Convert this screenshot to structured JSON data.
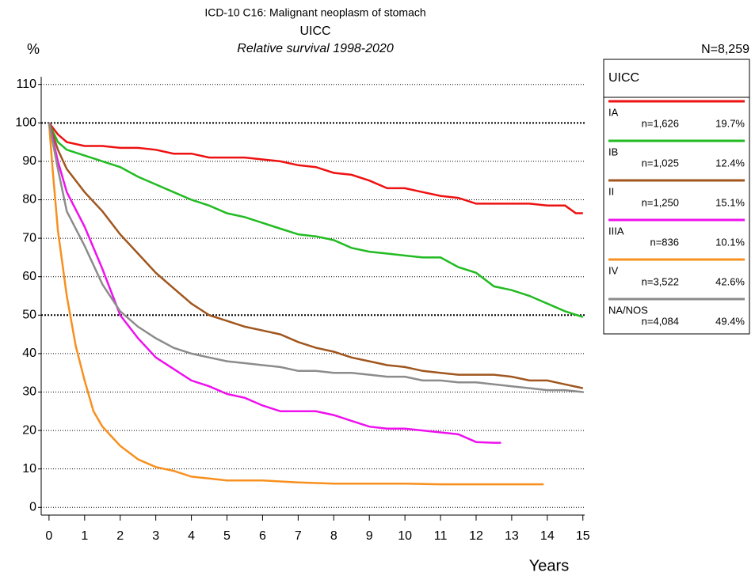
{
  "chart_data": {
    "type": "line",
    "title": "ICD-10 C16: Malignant neoplasm of stomach",
    "subtitle": "UICC",
    "caption": "Relative survival 1998-2020",
    "y_label": "%",
    "x_label": "Years",
    "total": "N=8,259",
    "legend_title": "UICC",
    "xlim": [
      -0.22,
      15.05
    ],
    "xticks": [
      0,
      1,
      2,
      3,
      4,
      5,
      6,
      7,
      8,
      9,
      10,
      11,
      12,
      13,
      14,
      15
    ],
    "ylim": [
      -2,
      112
    ],
    "yticks": [
      0,
      10,
      20,
      30,
      40,
      50,
      60,
      70,
      80,
      90,
      100,
      110
    ],
    "grid": true,
    "series": [
      {
        "name": "IA",
        "color": "#ee1111",
        "count": "n=1,626",
        "share": "19.7%",
        "x": [
          0,
          0.25,
          0.5,
          1,
          1.5,
          2,
          2.5,
          3,
          3.5,
          4,
          4.5,
          5,
          5.5,
          6,
          6.5,
          7,
          7.5,
          8,
          8.5,
          9,
          9.5,
          10,
          10.5,
          11,
          11.5,
          12,
          12.5,
          13,
          13.5,
          14,
          14.5,
          14.8,
          15
        ],
        "values": [
          100,
          97,
          95,
          94,
          94,
          93.5,
          93.5,
          93,
          92,
          92,
          91,
          91,
          91,
          90.5,
          90,
          89,
          88.5,
          87,
          86.5,
          85,
          83,
          83,
          82,
          81,
          80.5,
          79,
          79,
          79,
          79,
          78.5,
          78.5,
          76.5,
          76.5
        ]
      },
      {
        "name": "IB",
        "color": "#22bb22",
        "count": "n=1,025",
        "share": "12.4%",
        "x": [
          0,
          0.25,
          0.5,
          1,
          1.5,
          2,
          2.5,
          3,
          3.5,
          4,
          4.5,
          5,
          5.5,
          6,
          6.5,
          7,
          7.5,
          8,
          8.5,
          9,
          9.5,
          10,
          10.5,
          11,
          11.5,
          12,
          12.5,
          13,
          13.5,
          14,
          14.5,
          15
        ],
        "values": [
          100,
          95,
          93,
          91.5,
          90,
          88.5,
          86,
          84,
          82,
          80,
          78.5,
          76.5,
          75.5,
          74,
          72.5,
          71,
          70.5,
          69.5,
          67.5,
          66.5,
          66,
          65.5,
          65,
          65,
          62.5,
          61,
          57.5,
          56.5,
          55,
          53,
          51,
          49.5
        ]
      },
      {
        "name": "II",
        "color": "#a0561e",
        "count": "n=1,250",
        "share": "15.1%",
        "x": [
          0,
          0.25,
          0.5,
          1,
          1.5,
          2,
          2.5,
          3,
          3.5,
          4,
          4.5,
          5,
          5.5,
          6,
          6.5,
          7,
          7.5,
          8,
          8.5,
          9,
          9.5,
          10,
          10.5,
          11,
          11.5,
          12,
          12.5,
          13,
          13.5,
          14,
          14.5,
          15
        ],
        "values": [
          100,
          93,
          88,
          82,
          77,
          71,
          66,
          61,
          57,
          53,
          50,
          48.5,
          47,
          46,
          45,
          43,
          41.5,
          40.5,
          39,
          38,
          37,
          36.5,
          35.5,
          35,
          34.5,
          34.5,
          34.5,
          34,
          33,
          33,
          32,
          31
        ]
      },
      {
        "name": "IIIA",
        "color": "#ee11ee",
        "count": "n=836",
        "share": "10.1%",
        "x": [
          0,
          0.25,
          0.5,
          1,
          1.5,
          2,
          2.5,
          3,
          3.5,
          4,
          4.5,
          5,
          5.5,
          6,
          6.5,
          7,
          7.5,
          8,
          8.5,
          9,
          9.5,
          10,
          10.5,
          11,
          11.5,
          12,
          12.5,
          12.7
        ],
        "values": [
          100,
          90,
          82,
          73,
          62,
          50,
          44,
          39,
          36,
          33,
          31.5,
          29.5,
          28.5,
          26.5,
          25,
          25,
          25,
          24,
          22.5,
          21,
          20.5,
          20.5,
          20,
          19.5,
          19,
          17,
          16.8,
          16.8
        ]
      },
      {
        "name": "IV",
        "color": "#f7901e",
        "count": "n=3,522",
        "share": "42.6%",
        "x": [
          0,
          0.1,
          0.25,
          0.5,
          0.75,
          1,
          1.25,
          1.5,
          2,
          2.5,
          3,
          3.5,
          4,
          4.5,
          5,
          6,
          7,
          8,
          9,
          10,
          11,
          12,
          13,
          13.9
        ],
        "values": [
          100,
          88,
          72,
          55,
          42,
          33,
          25,
          21,
          16,
          12.5,
          10.5,
          9.5,
          8,
          7.5,
          7,
          7,
          6.5,
          6.2,
          6.2,
          6.2,
          6,
          6,
          6,
          6
        ]
      },
      {
        "name": "NA/NOS",
        "color": "#8c8c8c",
        "count": "n=4,084",
        "share": "49.4%",
        "x": [
          0,
          0.25,
          0.5,
          1,
          1.5,
          2,
          2.5,
          3,
          3.5,
          4,
          4.5,
          5,
          5.5,
          6,
          6.5,
          7,
          7.5,
          8,
          8.5,
          9,
          9.5,
          10,
          10.5,
          11,
          11.5,
          12,
          12.5,
          13,
          13.5,
          14,
          14.5,
          15
        ],
        "values": [
          100,
          88,
          77,
          68,
          58,
          51,
          47,
          44,
          41.5,
          40,
          39,
          38,
          37.5,
          37,
          36.5,
          35.5,
          35.5,
          35,
          35,
          34.5,
          34,
          34,
          33,
          33,
          32.5,
          32.5,
          32,
          31.5,
          31,
          30.5,
          30.5,
          30
        ]
      }
    ]
  }
}
